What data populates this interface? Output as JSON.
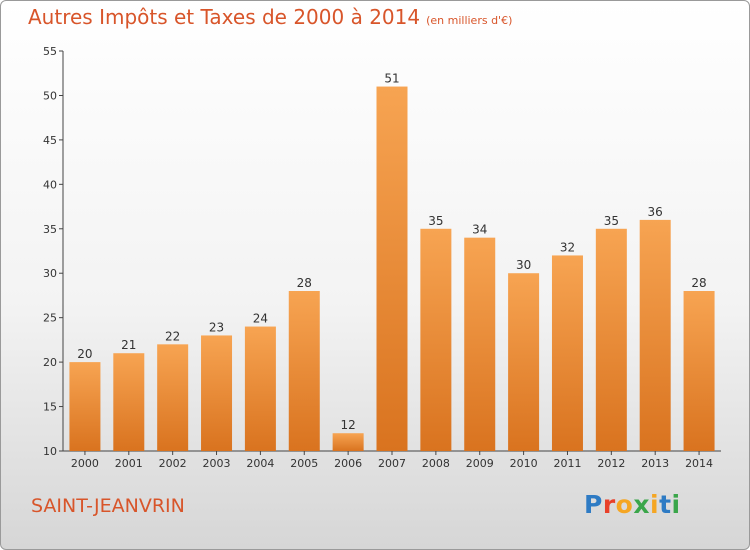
{
  "header": {
    "title": "Autres Impôts et Taxes de 2000 à 2014",
    "unit": "(en milliers d'€)"
  },
  "footer": {
    "commune": "SAINT-JEANVRIN",
    "logo": "Proxiti",
    "logo_letters": [
      {
        "ch": "P",
        "color": "#2e7bc4"
      },
      {
        "ch": "r",
        "color": "#e8402a"
      },
      {
        "ch": "o",
        "color": "#f5a623"
      },
      {
        "ch": "x",
        "color": "#3aa64a"
      },
      {
        "ch": "i",
        "color": "#f5a623"
      },
      {
        "ch": "t",
        "color": "#2e7bc4"
      },
      {
        "ch": "i",
        "color": "#3aa64a"
      }
    ]
  },
  "colors": {
    "bar_top": "#f7a452",
    "bar_bottom": "#d9731f",
    "title": "#d8552a"
  },
  "chart_data": {
    "type": "bar",
    "categories": [
      "2000",
      "2001",
      "2002",
      "2003",
      "2004",
      "2005",
      "2006",
      "2007",
      "2008",
      "2009",
      "2010",
      "2011",
      "2012",
      "2013",
      "2014"
    ],
    "values": [
      20,
      21,
      22,
      23,
      24,
      28,
      12,
      51,
      35,
      34,
      30,
      32,
      35,
      36,
      28
    ],
    "ylim": [
      10,
      55
    ],
    "yticks": [
      10,
      15,
      20,
      25,
      30,
      35,
      40,
      45,
      50,
      55
    ],
    "grid": false,
    "title": "Autres Impôts et Taxes de 2000 à 2014"
  }
}
